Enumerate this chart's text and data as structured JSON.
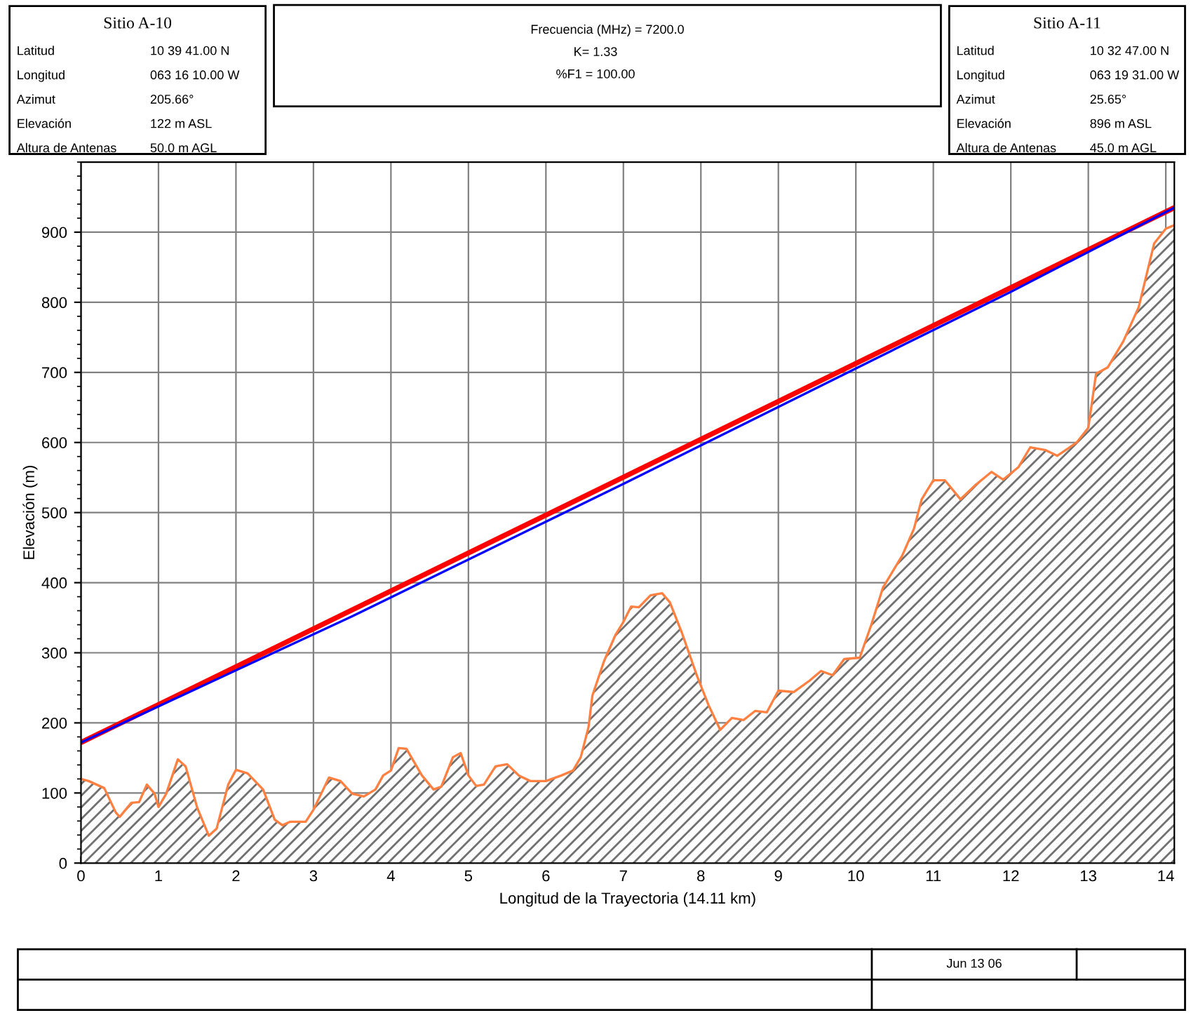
{
  "chart_data": {
    "type": "area",
    "xlabel": "Longitud de la Trayectoria (14.11 km)",
    "ylabel": "Elevación (m)",
    "xlim": [
      0,
      14.11
    ],
    "ylim": [
      0,
      1000
    ],
    "xticks": [
      0,
      1,
      2,
      3,
      4,
      5,
      6,
      7,
      8,
      9,
      10,
      11,
      12,
      13,
      14
    ],
    "yticks": [
      0,
      100,
      200,
      300,
      400,
      500,
      600,
      700,
      800,
      900
    ],
    "grid": true,
    "series": [
      {
        "color": "#ff8040",
        "x": [
          0,
          0.1,
          0.3,
          0.45,
          0.5,
          0.65,
          0.75,
          0.85,
          0.95,
          1.0,
          1.1,
          1.25,
          1.35,
          1.5,
          1.65,
          1.75,
          1.9,
          2.0,
          2.15,
          2.35,
          2.5,
          2.6,
          2.7,
          2.9,
          3.0,
          3.1,
          3.2,
          3.35,
          3.5,
          3.65,
          3.8,
          3.9,
          4.0,
          4.1,
          4.2,
          4.4,
          4.55,
          4.65,
          4.8,
          4.9,
          5.0,
          5.1,
          5.2,
          5.35,
          5.5,
          5.65,
          5.8,
          6.0,
          6.2,
          6.35,
          6.45,
          6.55,
          6.6,
          6.75,
          6.9,
          7.0,
          7.1,
          7.2,
          7.35,
          7.5,
          7.6,
          7.75,
          7.95,
          8.1,
          8.25,
          8.4,
          8.55,
          8.7,
          8.85,
          9.0,
          9.2,
          9.4,
          9.55,
          9.7,
          9.85,
          10.05,
          10.2,
          10.35,
          10.6,
          10.75,
          10.85,
          11.0,
          11.15,
          11.35,
          11.55,
          11.75,
          11.9,
          12.1,
          12.25,
          12.45,
          12.6,
          12.85,
          13.0,
          13.1,
          13.25,
          13.45,
          13.65,
          13.85,
          14.0,
          14.11
        ],
        "values": [
          120,
          117,
          107,
          72,
          66,
          86,
          87,
          112,
          99,
          80,
          99,
          148,
          138,
          79,
          39,
          49,
          112,
          133,
          128,
          105,
          62,
          54,
          59,
          59,
          76,
          99,
          122,
          117,
          99,
          95,
          105,
          125,
          132,
          164,
          163,
          125,
          105,
          109,
          151,
          157,
          125,
          110,
          112,
          138,
          141,
          125,
          117,
          117,
          125,
          132,
          151,
          194,
          239,
          288,
          326,
          344,
          366,
          365,
          382,
          385,
          372,
          330,
          267,
          225,
          190,
          207,
          204,
          217,
          215,
          246,
          244,
          260,
          274,
          268,
          291,
          293,
          340,
          393,
          439,
          477,
          519,
          546,
          546,
          519,
          540,
          558,
          547,
          565,
          593,
          589,
          581,
          600,
          621,
          698,
          707,
          744,
          793,
          884,
          905,
          910
        ]
      },
      {
        "type": "line",
        "color": "#ff0000",
        "x": [
          0,
          14.11
        ],
        "values": [
          172,
          935
        ]
      },
      {
        "type": "line",
        "color": "#0000ff",
        "x": [
          0,
          2,
          3.5,
          7,
          10.5,
          12,
          14.11
        ],
        "values": [
          172,
          275,
          352,
          541,
          733,
          815,
          935
        ]
      }
    ],
    "annotations": [
      "Sitio A-10",
      "Latitud",
      "10 39 41.00 N",
      "Longitud",
      "063 16 10.00 W",
      "Azimut",
      "205.66°",
      "Elevación",
      "122 m ASL",
      "Altura de Antenas",
      "50.0 m AGL",
      "Frecuencia (MHz) = 7200.0",
      "K= 1.33",
      "%F1 = 100.00",
      "Sitio A-11",
      "Latitud",
      "10 32 47.00 N",
      "Longitud",
      "063 19 31.00 W",
      "Azimut",
      "25.65°",
      "Elevación",
      "896 m ASL",
      "Altura de Antenas",
      "45.0 m AGL",
      "Jun 13 06"
    ]
  }
}
